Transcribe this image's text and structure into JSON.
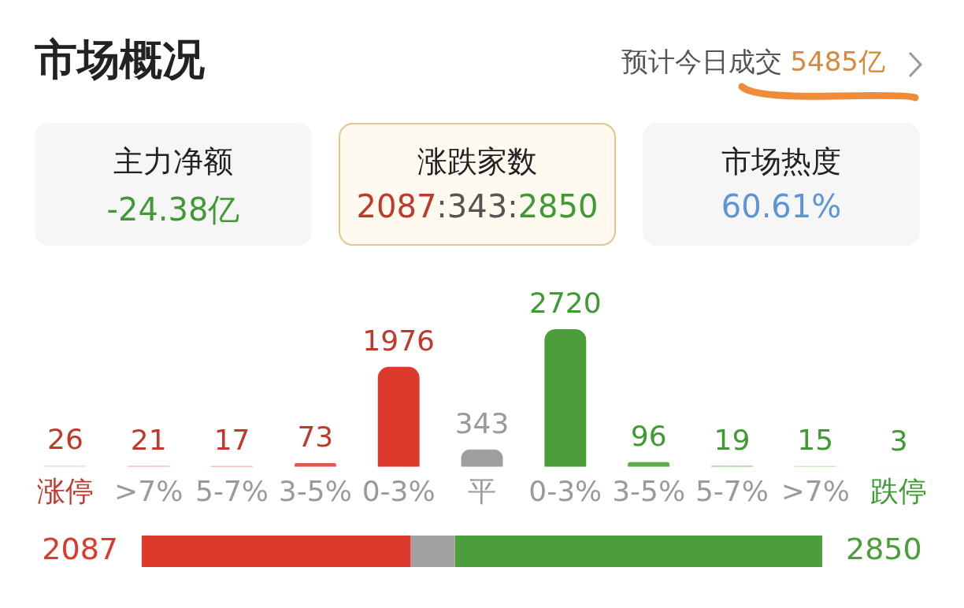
{
  "chart_data": [
    {
      "type": "other",
      "title": "市场概况",
      "annotations": [
        "预计今日成交",
        "5485亿",
        "主力净额",
        "-24.38亿",
        "涨跌家数",
        "2087:343:2850",
        "市场热度",
        "60.61%"
      ]
    },
    {
      "type": "bar",
      "categories": [
        "涨停",
        ">7%",
        "5-7%",
        "3-5%",
        "0-3%",
        "平",
        "0-3%",
        "3-5%",
        "5-7%",
        ">7%",
        "跌停"
      ],
      "values": [
        26,
        21,
        17,
        73,
        1976,
        343,
        2720,
        96,
        19,
        15,
        3
      ],
      "colors": [
        "#f3d2d2",
        "#eeaaaa",
        "#e58a84",
        "#df5a4e",
        "#dc3a2d",
        "#9e9e9e",
        "#4b9e3b",
        "#5eab4c",
        "#83c275",
        "#a9d6a0",
        "#d3ead0"
      ],
      "data_labels": true,
      "grid": false
    },
    {
      "type": "bar",
      "orientation": "horizontal",
      "stacked": true,
      "categories": [
        null
      ],
      "series": [
        {
          "color": "#dc3a2d",
          "values": [
            2087
          ],
          "value_labels": [
            "2087"
          ]
        },
        {
          "color": "#a0a0a0",
          "values": [
            343
          ],
          "value_labels": [
            null
          ]
        },
        {
          "color": "#4b9e3b",
          "values": [
            2850
          ],
          "value_labels": [
            "2850"
          ]
        }
      ]
    }
  ]
}
